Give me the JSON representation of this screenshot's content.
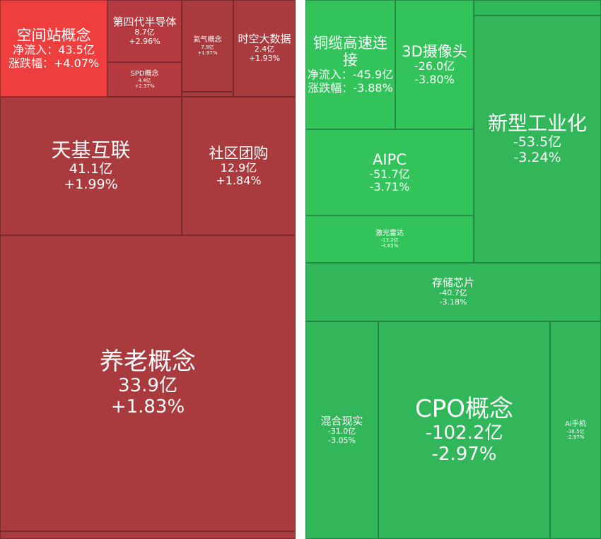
{
  "chart_data": {
    "type": "treemap",
    "labels": {
      "flow": "净流入：",
      "change": "涨跌幅："
    },
    "colors": {
      "up_strong": "#ef3e3e",
      "up": "#a93a3e",
      "down": "#31b65a",
      "down_light": "#32c45b"
    },
    "tiles": [
      {
        "name": "空间站概念",
        "value": "43.5亿",
        "pct": "+4.07%"
      },
      {
        "name": "第四代半导体",
        "value": "8.7亿",
        "pct": "+2.96%"
      },
      {
        "name": "SPD概念",
        "value": "4.4亿",
        "pct": "+2.37%"
      },
      {
        "name": "氦气概念",
        "value": "7.9亿",
        "pct": "+1.97%"
      },
      {
        "name": "时空大数据",
        "value": "2.4亿",
        "pct": "+1.93%"
      },
      {
        "name": "天基互联",
        "value": "41.1亿",
        "pct": "+1.99%"
      },
      {
        "name": "社区团购",
        "value": "12.9亿",
        "pct": "+1.84%"
      },
      {
        "name": "养老概念",
        "value": "33.9亿",
        "pct": "+1.83%"
      },
      {
        "name": "铜缆高速连接",
        "value": "-45.9亿",
        "pct": "-3.88%"
      },
      {
        "name": "3D摄像头",
        "value": "-26.0亿",
        "pct": "-3.80%"
      },
      {
        "name": "新型工业化",
        "value": "-53.5亿",
        "pct": "-3.24%"
      },
      {
        "name": "AIPC",
        "value": "-51.7亿",
        "pct": "-3.71%"
      },
      {
        "name": "激光雷达",
        "value": "-13.2亿",
        "pct": "-3.65%"
      },
      {
        "name": "存储芯片",
        "value": "-40.7亿",
        "pct": "-3.18%"
      },
      {
        "name": "混合现实",
        "value": "-31.0亿",
        "pct": "-3.05%"
      },
      {
        "name": "CPO概念",
        "value": "-102.2亿",
        "pct": "-2.97%"
      },
      {
        "name": "AI手机",
        "value": "-36.5亿",
        "pct": "-2.97%"
      }
    ]
  }
}
